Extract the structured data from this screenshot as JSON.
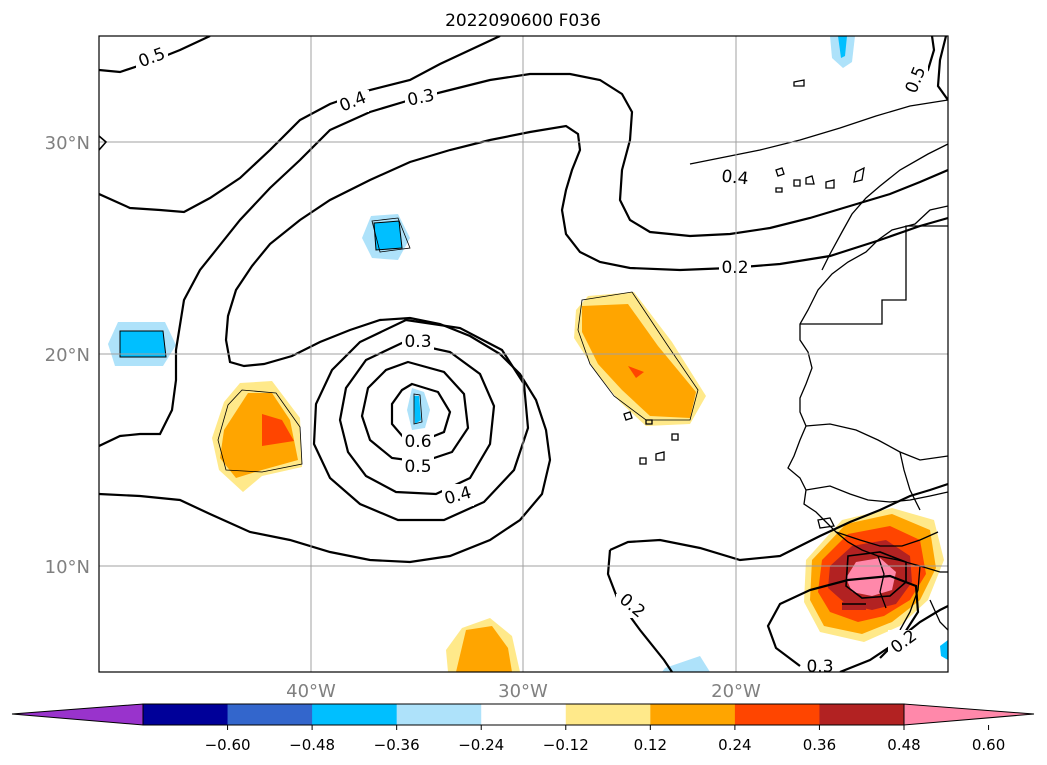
{
  "title": "2022090600 F036",
  "map": {
    "lat_labels": [
      "30°N",
      "20°N",
      "10°N"
    ],
    "lon_labels": [
      "40°W",
      "30°W",
      "20°W"
    ]
  },
  "contour_labels": [
    "0.5",
    "0.4",
    "0.3",
    "0.5",
    "0.4",
    "0.2",
    "0.3",
    "0.6",
    "0.5",
    "0.4",
    "0.2",
    "0.2",
    "0.3"
  ],
  "colorbar": {
    "ticks": [
      "−0.60",
      "−0.48",
      "−0.36",
      "−0.24",
      "−0.12",
      "0.12",
      "0.24",
      "0.36",
      "0.48",
      "0.60"
    ],
    "colors": [
      "#9933cc",
      "#000099",
      "#3366cc",
      "#00bfff",
      "#aee2fa",
      "#ffffff",
      "#ffe98a",
      "#ffa500",
      "#ff4500",
      "#b22222",
      "#ff88aa"
    ]
  }
}
